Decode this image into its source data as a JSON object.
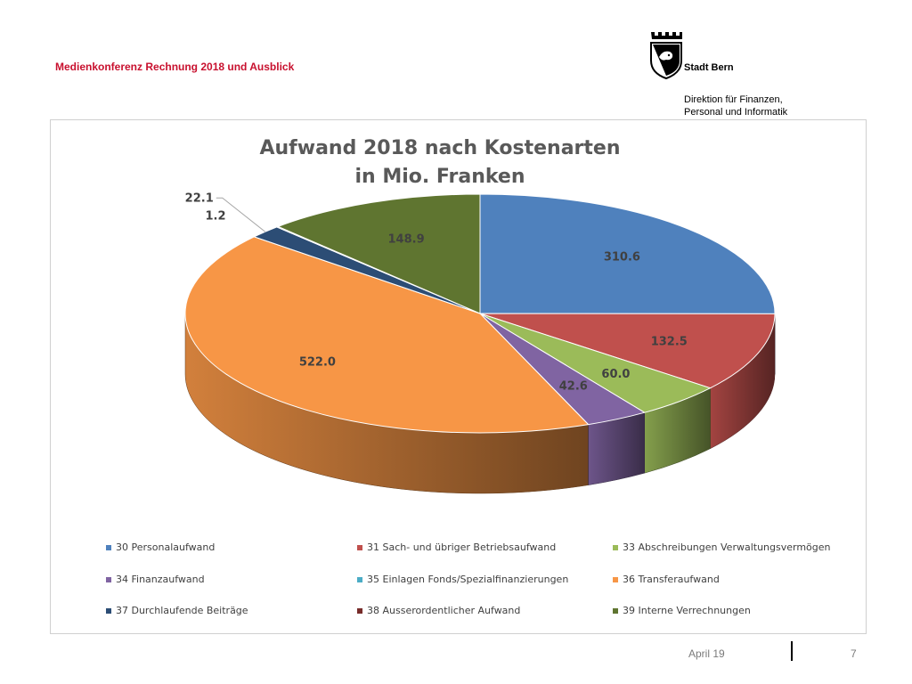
{
  "header": {
    "conference_title": "Medienkonferenz Rechnung 2018 und Ausblick",
    "org_name": "Stadt Bern",
    "department_line1": "Direktion für Finanzen,",
    "department_line2": "Personal und Informatik"
  },
  "footer": {
    "date": "April 19",
    "page_number": "7"
  },
  "chart_data": {
    "type": "pie",
    "title_line1": "Aufwand 2018 nach Kostenarten",
    "title_line2": "in Mio. Franken",
    "legend_position": "bottom",
    "series": [
      {
        "name": "30 Personalaufwand",
        "value": 310.6,
        "label": "310.6",
        "color": "#4f81bd"
      },
      {
        "name": "31 Sach- und übriger Betriebsaufwand",
        "value": 132.5,
        "label": "132.5",
        "color": "#c0504d"
      },
      {
        "name": "33 Abschreibungen Verwaltungsvermögen",
        "value": 60.0,
        "label": "60.0",
        "color": "#9bbb59"
      },
      {
        "name": "34 Finanzaufwand",
        "value": 42.6,
        "label": "42.6",
        "color": "#8064a2"
      },
      {
        "name": "35 Einlagen Fonds/Spezialfinanzierungen",
        "value": 0.0,
        "label": "",
        "color": "#4bacc6"
      },
      {
        "name": "36 Transferaufwand",
        "value": 522.0,
        "label": "522.0",
        "color": "#f79646"
      },
      {
        "name": "37 Durchlaufende Beiträge",
        "value": 22.1,
        "label": "22.1",
        "color": "#2c4d75"
      },
      {
        "name": "38 Ausserordentlicher Aufwand",
        "value": 1.2,
        "label": "1.2",
        "color": "#772c2a"
      },
      {
        "name": "39 Interne Verrechnungen",
        "value": 148.9,
        "label": "148.9",
        "color": "#5f7530"
      }
    ]
  }
}
